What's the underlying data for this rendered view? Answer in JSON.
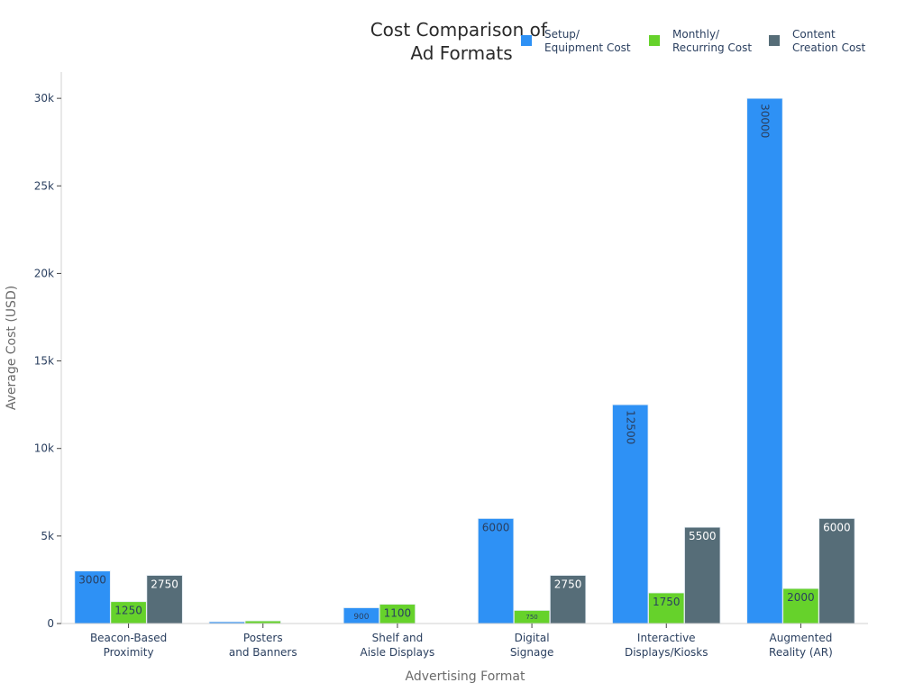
{
  "chart_data": {
    "type": "bar",
    "title_lines": [
      "Cost Comparison of",
      "Ad Formats"
    ],
    "xlabel": "Advertising Format",
    "ylabel": "Average Cost (USD)",
    "ylim": [
      0,
      31500
    ],
    "yticks": [
      0,
      5000,
      10000,
      15000,
      20000,
      25000,
      30000
    ],
    "ytick_labels": [
      "0",
      "5k",
      "10k",
      "15k",
      "20k",
      "25k",
      "30k"
    ],
    "categories": [
      [
        "Beacon-Based",
        "Proximity"
      ],
      [
        "Posters",
        "and Banners"
      ],
      [
        "Shelf and",
        "Aisle Displays"
      ],
      [
        "Digital",
        "Signage"
      ],
      [
        "Interactive",
        "Displays/Kiosks"
      ],
      [
        "Augmented",
        "Reality (AR)"
      ]
    ],
    "series": [
      {
        "name_lines": [
          "Setup/",
          "Equipment Cost"
        ],
        "color": "#2e91f5",
        "values": [
          3000,
          100,
          900,
          6000,
          12500,
          30000
        ],
        "labels": [
          "3000",
          "",
          "900",
          "6000",
          "12500",
          "30000"
        ]
      },
      {
        "name_lines": [
          "Monthly/",
          "Recurring Cost"
        ],
        "color": "#66d22b",
        "values": [
          1250,
          150,
          1100,
          750,
          1750,
          2000
        ],
        "labels": [
          "1250",
          "",
          "1100",
          "750",
          "1750",
          "2000"
        ]
      },
      {
        "name_lines": [
          "Content",
          "Creation Cost"
        ],
        "color": "#566d78",
        "values": [
          2750,
          null,
          null,
          2750,
          5500,
          6000
        ],
        "labels": [
          "2750",
          "",
          "",
          "2750",
          "5500",
          "6000"
        ]
      }
    ],
    "grid": false,
    "legend_position": "top-right"
  }
}
